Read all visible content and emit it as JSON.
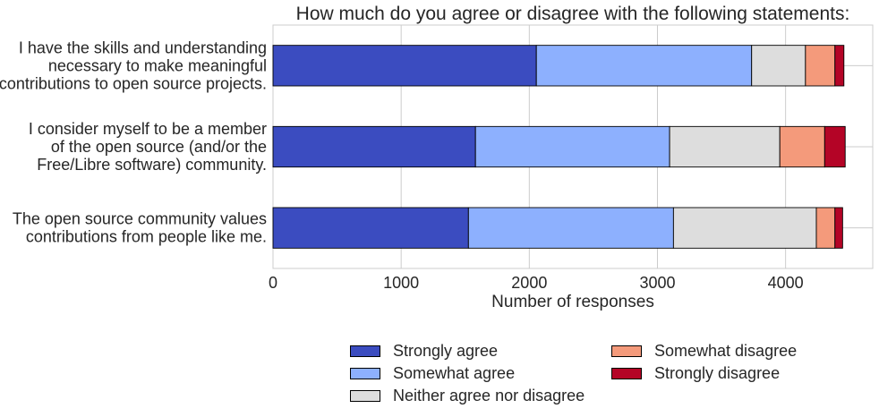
{
  "chart_data": {
    "type": "bar",
    "orientation": "horizontal",
    "stacked": true,
    "title": "How much do you agree or disagree with the following statements:",
    "xlabel": "Number of responses",
    "ylabel": "",
    "xlim": [
      0,
      4680
    ],
    "xticks": [
      0,
      1000,
      2000,
      3000,
      4000
    ],
    "grid": true,
    "legend_position": "bottom-center",
    "categories": [
      [
        "I have the skills and understanding",
        "necessary to make meaningful",
        "contributions to open source projects."
      ],
      [
        "I consider myself to be a member",
        "of the open source (and/or the",
        "Free/Libre software) community."
      ],
      [
        "The open source community values",
        "contributions from people like me."
      ]
    ],
    "series": [
      {
        "name": "Strongly agree",
        "color": "#3b4cc0",
        "values": [
          2055,
          1580,
          1525
        ]
      },
      {
        "name": "Somewhat agree",
        "color": "#8db0fe",
        "values": [
          1680,
          1515,
          1600
        ]
      },
      {
        "name": "Neither agree nor disagree",
        "color": "#dddddd",
        "values": [
          420,
          860,
          1115
        ]
      },
      {
        "name": "Somewhat disagree",
        "color": "#f49a7b",
        "values": [
          230,
          350,
          145
        ]
      },
      {
        "name": "Strongly disagree",
        "color": "#b40426",
        "values": [
          70,
          160,
          60
        ]
      }
    ]
  }
}
